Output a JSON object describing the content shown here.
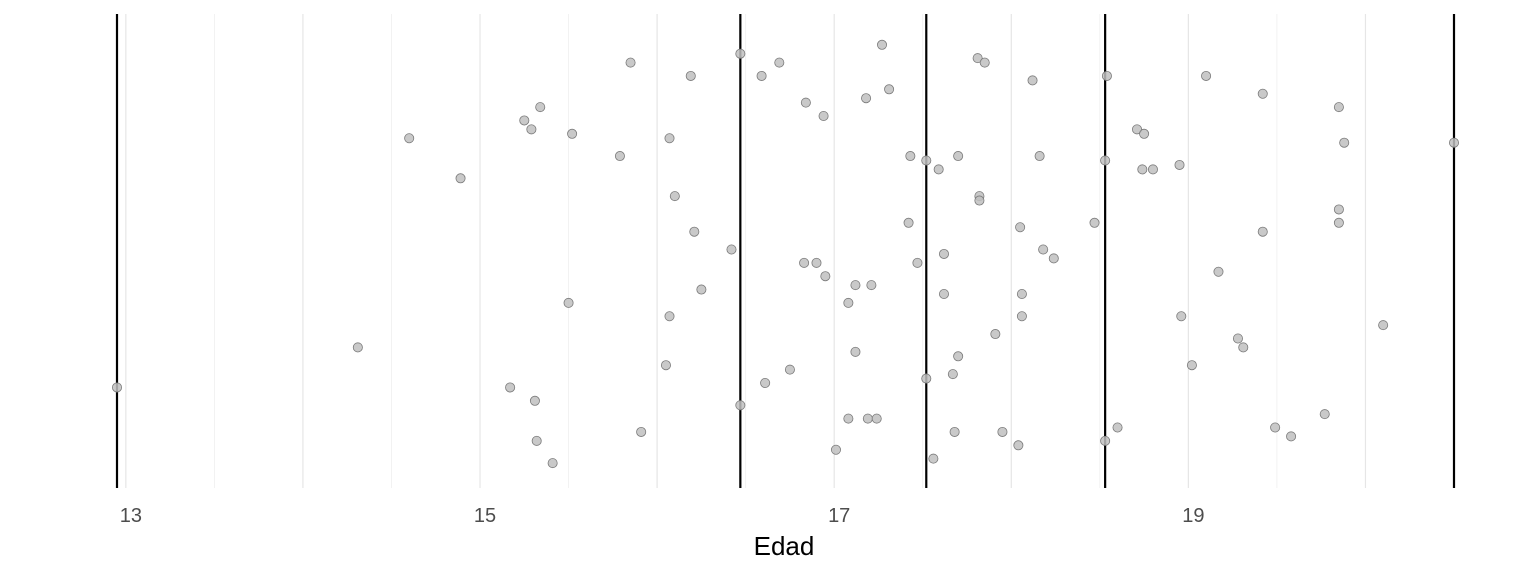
{
  "chart_data": {
    "type": "scatter",
    "title": "",
    "xlabel": "Edad",
    "ylabel": "",
    "xlim": [
      12.95,
      20.5
    ],
    "x_ticks": [
      13,
      15,
      17,
      19
    ],
    "x_tick_labels": [
      "13",
      "15",
      "17",
      "19"
    ],
    "grid": true,
    "legend": "none",
    "vlines": [
      12.95,
      16.47,
      17.52,
      18.53,
      20.5
    ],
    "y_jitter_range": [
      0,
      1
    ],
    "points": [
      {
        "x": 15.85,
        "y": 0.92
      },
      {
        "x": 16.47,
        "y": 0.94
      },
      {
        "x": 16.69,
        "y": 0.92
      },
      {
        "x": 17.27,
        "y": 0.96
      },
      {
        "x": 17.81,
        "y": 0.93
      },
      {
        "x": 17.85,
        "y": 0.92
      },
      {
        "x": 16.19,
        "y": 0.89
      },
      {
        "x": 16.59,
        "y": 0.89
      },
      {
        "x": 18.12,
        "y": 0.88
      },
      {
        "x": 18.54,
        "y": 0.89
      },
      {
        "x": 19.1,
        "y": 0.89
      },
      {
        "x": 16.84,
        "y": 0.83
      },
      {
        "x": 17.18,
        "y": 0.84
      },
      {
        "x": 17.31,
        "y": 0.86
      },
      {
        "x": 19.42,
        "y": 0.85
      },
      {
        "x": 15.34,
        "y": 0.82
      },
      {
        "x": 16.94,
        "y": 0.8
      },
      {
        "x": 19.85,
        "y": 0.82
      },
      {
        "x": 15.25,
        "y": 0.79
      },
      {
        "x": 15.29,
        "y": 0.77
      },
      {
        "x": 18.71,
        "y": 0.77
      },
      {
        "x": 18.75,
        "y": 0.76
      },
      {
        "x": 14.6,
        "y": 0.75
      },
      {
        "x": 15.52,
        "y": 0.76
      },
      {
        "x": 16.07,
        "y": 0.75
      },
      {
        "x": 19.88,
        "y": 0.74
      },
      {
        "x": 20.5,
        "y": 0.74
      },
      {
        "x": 15.79,
        "y": 0.71
      },
      {
        "x": 17.43,
        "y": 0.71
      },
      {
        "x": 17.52,
        "y": 0.7
      },
      {
        "x": 17.7,
        "y": 0.71
      },
      {
        "x": 18.16,
        "y": 0.71
      },
      {
        "x": 17.59,
        "y": 0.68
      },
      {
        "x": 18.53,
        "y": 0.7
      },
      {
        "x": 18.74,
        "y": 0.68
      },
      {
        "x": 18.8,
        "y": 0.68
      },
      {
        "x": 18.95,
        "y": 0.69
      },
      {
        "x": 14.89,
        "y": 0.66
      },
      {
        "x": 16.1,
        "y": 0.62
      },
      {
        "x": 17.82,
        "y": 0.62
      },
      {
        "x": 17.82,
        "y": 0.61
      },
      {
        "x": 19.85,
        "y": 0.59
      },
      {
        "x": 17.42,
        "y": 0.56
      },
      {
        "x": 18.05,
        "y": 0.55
      },
      {
        "x": 18.47,
        "y": 0.56
      },
      {
        "x": 19.85,
        "y": 0.56
      },
      {
        "x": 16.21,
        "y": 0.54
      },
      {
        "x": 19.42,
        "y": 0.54
      },
      {
        "x": 16.42,
        "y": 0.5
      },
      {
        "x": 17.62,
        "y": 0.49
      },
      {
        "x": 18.18,
        "y": 0.5
      },
      {
        "x": 18.24,
        "y": 0.48
      },
      {
        "x": 16.83,
        "y": 0.47
      },
      {
        "x": 16.9,
        "y": 0.47
      },
      {
        "x": 17.47,
        "y": 0.47
      },
      {
        "x": 19.17,
        "y": 0.45
      },
      {
        "x": 16.95,
        "y": 0.44
      },
      {
        "x": 17.12,
        "y": 0.42
      },
      {
        "x": 17.21,
        "y": 0.42
      },
      {
        "x": 16.25,
        "y": 0.41
      },
      {
        "x": 17.62,
        "y": 0.4
      },
      {
        "x": 18.06,
        "y": 0.4
      },
      {
        "x": 15.5,
        "y": 0.38
      },
      {
        "x": 17.08,
        "y": 0.38
      },
      {
        "x": 16.07,
        "y": 0.35
      },
      {
        "x": 18.06,
        "y": 0.35
      },
      {
        "x": 18.96,
        "y": 0.35
      },
      {
        "x": 20.1,
        "y": 0.33
      },
      {
        "x": 17.91,
        "y": 0.31
      },
      {
        "x": 19.28,
        "y": 0.3
      },
      {
        "x": 14.31,
        "y": 0.28
      },
      {
        "x": 19.31,
        "y": 0.28
      },
      {
        "x": 17.12,
        "y": 0.27
      },
      {
        "x": 17.7,
        "y": 0.26
      },
      {
        "x": 16.05,
        "y": 0.24
      },
      {
        "x": 16.75,
        "y": 0.23
      },
      {
        "x": 19.02,
        "y": 0.24
      },
      {
        "x": 17.67,
        "y": 0.22
      },
      {
        "x": 17.52,
        "y": 0.21
      },
      {
        "x": 16.61,
        "y": 0.2
      },
      {
        "x": 12.95,
        "y": 0.19
      },
      {
        "x": 15.17,
        "y": 0.19
      },
      {
        "x": 15.31,
        "y": 0.16
      },
      {
        "x": 16.47,
        "y": 0.15
      },
      {
        "x": 19.77,
        "y": 0.13
      },
      {
        "x": 17.08,
        "y": 0.12
      },
      {
        "x": 17.19,
        "y": 0.12
      },
      {
        "x": 17.24,
        "y": 0.12
      },
      {
        "x": 15.91,
        "y": 0.09
      },
      {
        "x": 17.68,
        "y": 0.09
      },
      {
        "x": 17.95,
        "y": 0.09
      },
      {
        "x": 18.6,
        "y": 0.1
      },
      {
        "x": 19.49,
        "y": 0.1
      },
      {
        "x": 19.58,
        "y": 0.08
      },
      {
        "x": 15.32,
        "y": 0.07
      },
      {
        "x": 18.04,
        "y": 0.06
      },
      {
        "x": 18.53,
        "y": 0.07
      },
      {
        "x": 17.01,
        "y": 0.05
      },
      {
        "x": 17.56,
        "y": 0.03
      },
      {
        "x": 15.41,
        "y": 0.02
      }
    ]
  }
}
